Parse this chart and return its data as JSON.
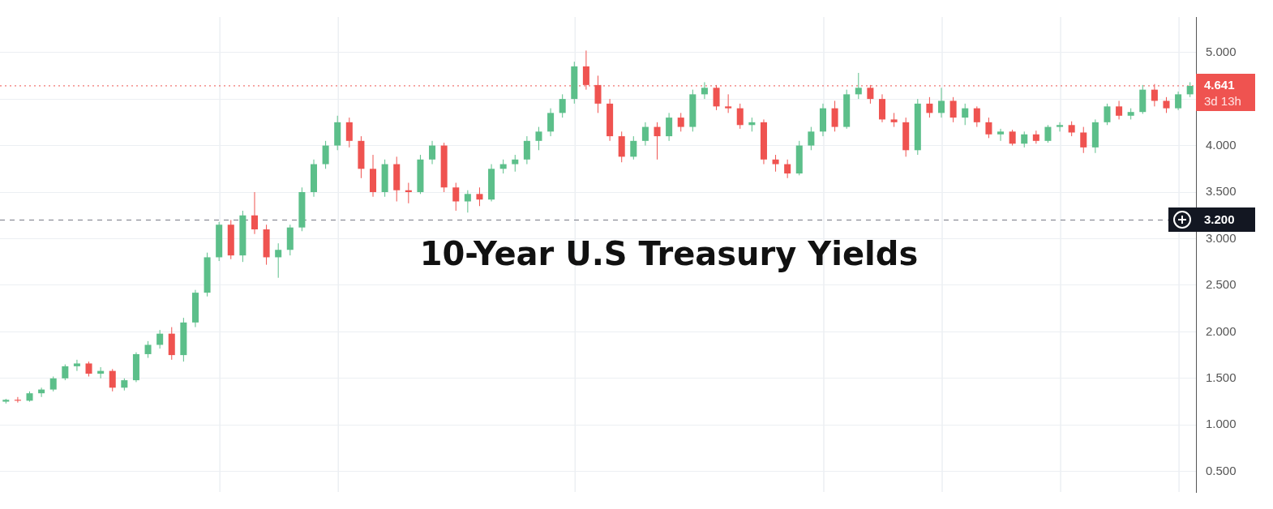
{
  "chart_data": {
    "type": "candlestick",
    "title": "10-Year U.S Treasury Yields",
    "categories": [
      null,
      null,
      null,
      null,
      null,
      null,
      null,
      null,
      null,
      null,
      null,
      null,
      null,
      null,
      null,
      null,
      null,
      null,
      null,
      null,
      null,
      null,
      null,
      null,
      null,
      null,
      null,
      null,
      null,
      null,
      null,
      null,
      null,
      null,
      null,
      null,
      null,
      null,
      null,
      null,
      null,
      null,
      null,
      null,
      null,
      null,
      null,
      null,
      null,
      null,
      null,
      null,
      null,
      null,
      null,
      null,
      null,
      null,
      null,
      null,
      null,
      null,
      null,
      null,
      null,
      null,
      null,
      null,
      null,
      null,
      null,
      null,
      null,
      null,
      null,
      null,
      null,
      null,
      null,
      null,
      null,
      null,
      null,
      null,
      null,
      null,
      null,
      null,
      null,
      null,
      null,
      null,
      null,
      null,
      null,
      null,
      null,
      null,
      null,
      null,
      null
    ],
    "ohlc": [
      [
        1.25,
        1.28,
        1.23,
        1.27
      ],
      [
        1.27,
        1.3,
        1.24,
        1.26
      ],
      [
        1.26,
        1.36,
        1.25,
        1.34
      ],
      [
        1.34,
        1.4,
        1.3,
        1.38
      ],
      [
        1.38,
        1.52,
        1.36,
        1.5
      ],
      [
        1.5,
        1.65,
        1.48,
        1.63
      ],
      [
        1.63,
        1.7,
        1.58,
        1.66
      ],
      [
        1.66,
        1.68,
        1.52,
        1.55
      ],
      [
        1.55,
        1.62,
        1.5,
        1.58
      ],
      [
        1.58,
        1.6,
        1.36,
        1.4
      ],
      [
        1.4,
        1.5,
        1.37,
        1.48
      ],
      [
        1.48,
        1.78,
        1.46,
        1.76
      ],
      [
        1.76,
        1.9,
        1.72,
        1.86
      ],
      [
        1.86,
        2.02,
        1.82,
        1.98
      ],
      [
        1.98,
        2.05,
        1.7,
        1.75
      ],
      [
        1.75,
        2.15,
        1.68,
        2.1
      ],
      [
        2.1,
        2.45,
        2.05,
        2.42
      ],
      [
        2.42,
        2.85,
        2.38,
        2.8
      ],
      [
        2.8,
        3.18,
        2.76,
        3.15
      ],
      [
        3.15,
        3.2,
        2.78,
        2.82
      ],
      [
        2.82,
        3.3,
        2.75,
        3.25
      ],
      [
        3.25,
        3.5,
        3.05,
        3.1
      ],
      [
        3.1,
        3.15,
        2.72,
        2.8
      ],
      [
        2.8,
        2.95,
        2.58,
        2.88
      ],
      [
        2.88,
        3.15,
        2.82,
        3.12
      ],
      [
        3.12,
        3.55,
        3.08,
        3.5
      ],
      [
        3.5,
        3.85,
        3.45,
        3.8
      ],
      [
        3.8,
        4.05,
        3.75,
        4.0
      ],
      [
        4.0,
        4.32,
        3.95,
        4.25
      ],
      [
        4.25,
        4.3,
        3.98,
        4.05
      ],
      [
        4.05,
        4.1,
        3.65,
        3.75
      ],
      [
        3.75,
        3.9,
        3.45,
        3.5
      ],
      [
        3.5,
        3.85,
        3.45,
        3.8
      ],
      [
        3.8,
        3.88,
        3.4,
        3.52
      ],
      [
        3.52,
        3.6,
        3.38,
        3.5
      ],
      [
        3.5,
        3.9,
        3.48,
        3.85
      ],
      [
        3.85,
        4.05,
        3.8,
        4.0
      ],
      [
        4.0,
        4.03,
        3.5,
        3.55
      ],
      [
        3.55,
        3.6,
        3.3,
        3.4
      ],
      [
        3.4,
        3.52,
        3.28,
        3.48
      ],
      [
        3.48,
        3.55,
        3.35,
        3.42
      ],
      [
        3.42,
        3.8,
        3.4,
        3.75
      ],
      [
        3.75,
        3.85,
        3.7,
        3.8
      ],
      [
        3.8,
        3.9,
        3.72,
        3.85
      ],
      [
        3.85,
        4.1,
        3.8,
        4.05
      ],
      [
        4.05,
        4.2,
        3.95,
        4.15
      ],
      [
        4.15,
        4.4,
        4.1,
        4.35
      ],
      [
        4.35,
        4.55,
        4.3,
        4.5
      ],
      [
        4.5,
        4.9,
        4.45,
        4.85
      ],
      [
        4.85,
        5.02,
        4.6,
        4.65
      ],
      [
        4.65,
        4.75,
        4.35,
        4.45
      ],
      [
        4.45,
        4.5,
        4.05,
        4.1
      ],
      [
        4.1,
        4.15,
        3.82,
        3.88
      ],
      [
        3.88,
        4.1,
        3.85,
        4.05
      ],
      [
        4.05,
        4.25,
        4.0,
        4.2
      ],
      [
        4.2,
        4.25,
        3.85,
        4.1
      ],
      [
        4.1,
        4.35,
        4.05,
        4.3
      ],
      [
        4.3,
        4.35,
        4.15,
        4.2
      ],
      [
        4.2,
        4.6,
        4.15,
        4.55
      ],
      [
        4.55,
        4.68,
        4.5,
        4.62
      ],
      [
        4.62,
        4.65,
        4.38,
        4.42
      ],
      [
        4.42,
        4.55,
        4.35,
        4.4
      ],
      [
        4.4,
        4.45,
        4.18,
        4.22
      ],
      [
        4.22,
        4.3,
        4.15,
        4.25
      ],
      [
        4.25,
        4.28,
        3.8,
        3.85
      ],
      [
        3.85,
        3.9,
        3.72,
        3.8
      ],
      [
        3.8,
        3.85,
        3.65,
        3.7
      ],
      [
        3.7,
        4.05,
        3.68,
        4.0
      ],
      [
        4.0,
        4.2,
        3.95,
        4.15
      ],
      [
        4.15,
        4.45,
        4.1,
        4.4
      ],
      [
        4.4,
        4.48,
        4.15,
        4.2
      ],
      [
        4.2,
        4.6,
        4.18,
        4.55
      ],
      [
        4.55,
        4.78,
        4.5,
        4.62
      ],
      [
        4.62,
        4.65,
        4.45,
        4.5
      ],
      [
        4.5,
        4.55,
        4.25,
        4.28
      ],
      [
        4.28,
        4.35,
        4.2,
        4.25
      ],
      [
        4.25,
        4.3,
        3.88,
        3.95
      ],
      [
        3.95,
        4.5,
        3.9,
        4.45
      ],
      [
        4.45,
        4.52,
        4.3,
        4.35
      ],
      [
        4.35,
        4.62,
        4.3,
        4.48
      ],
      [
        4.48,
        4.52,
        4.25,
        4.3
      ],
      [
        4.3,
        4.45,
        4.22,
        4.4
      ],
      [
        4.4,
        4.42,
        4.2,
        4.25
      ],
      [
        4.25,
        4.3,
        4.08,
        4.12
      ],
      [
        4.12,
        4.18,
        4.05,
        4.15
      ],
      [
        4.15,
        4.17,
        4.0,
        4.02
      ],
      [
        4.02,
        4.15,
        3.98,
        4.12
      ],
      [
        4.12,
        4.16,
        4.02,
        4.05
      ],
      [
        4.05,
        4.22,
        4.03,
        4.2
      ],
      [
        4.2,
        4.25,
        4.15,
        4.22
      ],
      [
        4.22,
        4.26,
        4.1,
        4.14
      ],
      [
        4.14,
        4.2,
        3.92,
        3.98
      ],
      [
        3.98,
        4.28,
        3.92,
        4.25
      ],
      [
        4.25,
        4.45,
        4.22,
        4.42
      ],
      [
        4.42,
        4.48,
        4.28,
        4.32
      ],
      [
        4.32,
        4.4,
        4.28,
        4.36
      ],
      [
        4.36,
        4.65,
        4.34,
        4.6
      ],
      [
        4.6,
        4.66,
        4.42,
        4.48
      ],
      [
        4.48,
        4.52,
        4.35,
        4.4
      ],
      [
        4.4,
        4.58,
        4.38,
        4.55
      ],
      [
        4.55,
        4.68,
        4.52,
        4.64
      ]
    ],
    "colors": [
      "#5cbf8a",
      "#ef5350",
      "#5cbf8a",
      "#5cbf8a",
      "#5cbf8a",
      "#5cbf8a",
      "#5cbf8a",
      "#ef5350",
      "#5cbf8a",
      "#ef5350",
      "#5cbf8a",
      "#5cbf8a",
      "#5cbf8a",
      "#5cbf8a",
      "#ef5350",
      "#5cbf8a",
      "#5cbf8a",
      "#5cbf8a",
      "#5cbf8a",
      "#ef5350",
      "#5cbf8a",
      "#ef5350",
      "#ef5350",
      "#5cbf8a",
      "#5cbf8a",
      "#5cbf8a",
      "#5cbf8a",
      "#5cbf8a",
      "#5cbf8a",
      "#ef5350",
      "#ef5350",
      "#ef5350",
      "#5cbf8a",
      "#ef5350",
      "#ef5350",
      "#5cbf8a",
      "#5cbf8a",
      "#ef5350",
      "#ef5350",
      "#5cbf8a",
      "#ef5350",
      "#5cbf8a",
      "#5cbf8a",
      "#5cbf8a",
      "#5cbf8a",
      "#5cbf8a",
      "#5cbf8a",
      "#5cbf8a",
      "#5cbf8a",
      "#ef5350",
      "#ef5350",
      "#ef5350",
      "#ef5350",
      "#5cbf8a",
      "#5cbf8a",
      "#ef5350",
      "#5cbf8a",
      "#ef5350",
      "#5cbf8a",
      "#5cbf8a",
      "#ef5350",
      "#ef5350",
      "#ef5350",
      "#5cbf8a",
      "#ef5350",
      "#ef5350",
      "#ef5350",
      "#5cbf8a",
      "#5cbf8a",
      "#5cbf8a",
      "#ef5350",
      "#5cbf8a",
      "#5cbf8a",
      "#ef5350",
      "#ef5350",
      "#ef5350",
      "#ef5350",
      "#5cbf8a",
      "#ef5350",
      "#5cbf8a",
      "#ef5350",
      "#5cbf8a",
      "#ef5350",
      "#ef5350",
      "#5cbf8a",
      "#ef5350",
      "#5cbf8a",
      "#ef5350",
      "#5cbf8a",
      "#5cbf8a",
      "#ef5350",
      "#ef5350",
      "#5cbf8a",
      "#5cbf8a",
      "#ef5350",
      "#5cbf8a",
      "#5cbf8a",
      "#ef5350",
      "#ef5350",
      "#5cbf8a",
      "#5cbf8a"
    ],
    "ylim": [
      0.28,
      5.38
    ],
    "yticks": [
      {
        "value": 0.5,
        "label": "0.500"
      },
      {
        "value": 1,
        "label": "1.000"
      },
      {
        "value": 1.5,
        "label": "1.500"
      },
      {
        "value": 2,
        "label": "2.000"
      },
      {
        "value": 2.5,
        "label": "2.500"
      },
      {
        "value": 3,
        "label": "3.000"
      },
      {
        "value": 3.5,
        "label": "3.500"
      },
      {
        "value": 4,
        "label": "4.000"
      },
      {
        "value": 4.5,
        "label": null
      },
      {
        "value": 5,
        "label": "5.000"
      }
    ],
    "grid": true,
    "legend": false,
    "tick_labels": "y",
    "ref_lines": [
      {
        "axis": "y",
        "value": 4.641,
        "label": "4.641",
        "color": "#ef5350",
        "line_style": "dotted"
      },
      {
        "axis": "y",
        "value": 3.2,
        "label": "3.200",
        "color": "#787b86",
        "line_style": "dashed"
      }
    ],
    "annotations": [
      "3d 13h"
    ]
  }
}
